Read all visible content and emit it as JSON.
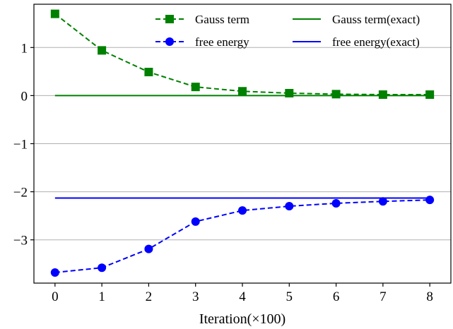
{
  "chart_data": {
    "type": "line",
    "xlabel": "Iteration(×100)",
    "ylabel": "",
    "x": [
      0,
      1,
      2,
      3,
      4,
      5,
      6,
      7,
      8
    ],
    "xlim": [
      -0.45,
      8.45
    ],
    "ylim": [
      -3.9,
      1.9
    ],
    "x_ticks": [
      0,
      1,
      2,
      3,
      4,
      5,
      6,
      7,
      8
    ],
    "x_tick_labels": [
      "0",
      "1",
      "2",
      "3",
      "4",
      "5",
      "6",
      "7",
      "8"
    ],
    "y_ticks": [
      1,
      0,
      -1,
      -2,
      -3
    ],
    "y_tick_labels": [
      "1",
      "0",
      "−1",
      "−2",
      "−3"
    ],
    "grid": "horizontal",
    "legend_position": "top-right",
    "series": [
      {
        "name": "Gauss term",
        "style": "dashed",
        "marker": "square",
        "color": "#008000",
        "values": [
          1.7,
          0.94,
          0.49,
          0.18,
          0.09,
          0.05,
          0.03,
          0.02,
          0.02
        ]
      },
      {
        "name": "free energy",
        "style": "dashed",
        "marker": "circle",
        "color": "#0000ff",
        "values": [
          -3.68,
          -3.58,
          -3.19,
          -2.62,
          -2.39,
          -2.3,
          -2.24,
          -2.2,
          -2.17
        ]
      },
      {
        "name": "Gauss term(exact)",
        "style": "solid",
        "marker": "none",
        "color": "#008000",
        "values": [
          0,
          0,
          0,
          0,
          0,
          0,
          0,
          0,
          0
        ]
      },
      {
        "name": "free energy(exact)",
        "style": "solid",
        "marker": "none",
        "color": "#0000ff",
        "values": [
          -2.13,
          -2.13,
          -2.13,
          -2.13,
          -2.13,
          -2.13,
          -2.13,
          -2.13,
          -2.13
        ]
      }
    ]
  }
}
